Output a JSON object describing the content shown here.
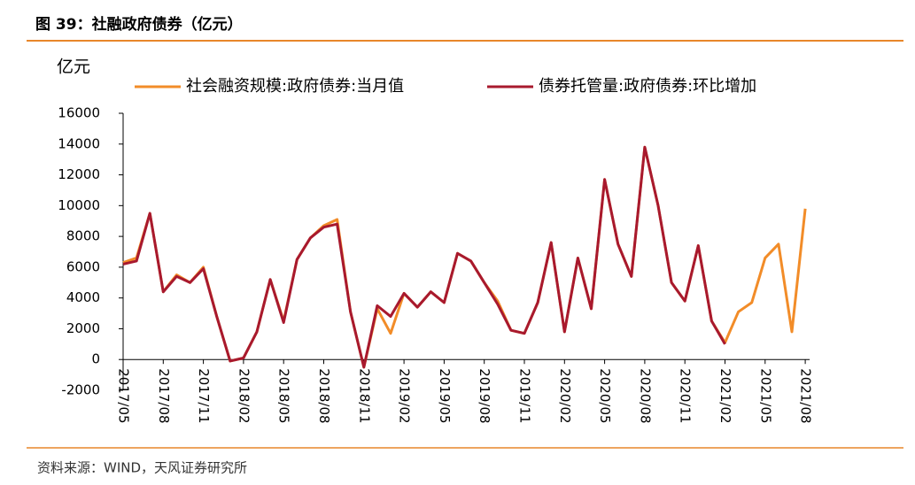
{
  "header": {
    "title": "图 39：社融政府债券（亿元）"
  },
  "chart_data": {
    "type": "line",
    "y_unit": "亿元",
    "categories": [
      "2017/05",
      null,
      null,
      "2017/08",
      null,
      null,
      "2017/11",
      null,
      null,
      "2018/02",
      null,
      null,
      "2018/05",
      null,
      null,
      "2018/08",
      null,
      null,
      "2018/11",
      null,
      null,
      "2019/02",
      null,
      null,
      "2019/05",
      null,
      null,
      "2019/08",
      null,
      null,
      "2019/11",
      null,
      null,
      "2020/02",
      null,
      null,
      "2020/05",
      null,
      null,
      "2020/08",
      null,
      null,
      "2020/11",
      null,
      null,
      "2021/02",
      null,
      null,
      "2021/05",
      null,
      null,
      "2021/08"
    ],
    "series": [
      {
        "name": "社会融资规模:政府债券:当月值",
        "color": "#f28c28",
        "values": [
          6300,
          6600,
          9500,
          4400,
          5500,
          5000,
          6000,
          2800,
          -100,
          100,
          1800,
          5200,
          2500,
          6500,
          7900,
          8700,
          9100,
          3100,
          -500,
          3300,
          1700,
          4300,
          3400,
          4400,
          3700,
          6900,
          6400,
          5000,
          3800,
          1900,
          1700,
          3700,
          7600,
          1800,
          6600,
          3300,
          11700,
          7500,
          5400,
          13800,
          10000,
          5000,
          3800,
          7400,
          2500,
          1100,
          3100,
          3700,
          6600,
          7500,
          1800,
          9800
        ]
      },
      {
        "name": "债券托管量:政府债券:环比增加",
        "color": "#a8192e",
        "values": [
          6200,
          6400,
          9500,
          4400,
          5400,
          5000,
          5900,
          2800,
          -100,
          100,
          1800,
          5200,
          2400,
          6500,
          7900,
          8600,
          8800,
          3100,
          -500,
          3500,
          2800,
          4300,
          3400,
          4400,
          3700,
          6900,
          6400,
          5000,
          3600,
          1900,
          1700,
          3700,
          7600,
          1800,
          6600,
          3300,
          11700,
          7500,
          5400,
          13800,
          10000,
          5000,
          3800,
          7400,
          2500,
          1000,
          null,
          null,
          null,
          null,
          null,
          null
        ]
      }
    ],
    "ylim": [
      -2000,
      16000
    ],
    "yticks": [
      -2000,
      0,
      2000,
      4000,
      6000,
      8000,
      10000,
      12000,
      14000,
      16000
    ]
  },
  "footer": {
    "source": "资料来源：WIND，天风证券研究所"
  }
}
